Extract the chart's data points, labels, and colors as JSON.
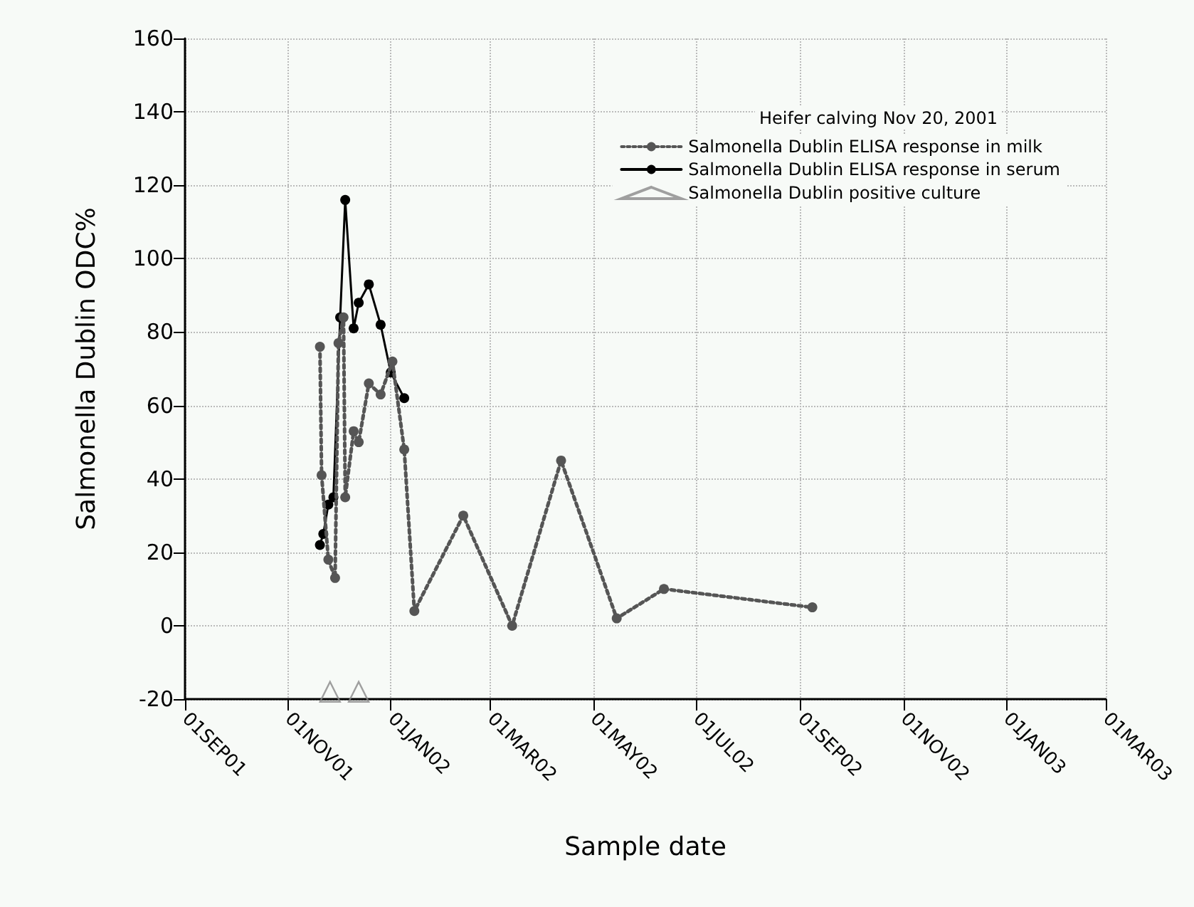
{
  "chart_data": {
    "type": "line",
    "xlabel": "Sample date",
    "ylabel": "Salmonella Dublin ODC%",
    "legend_title": "Heifer calving Nov 20, 2001",
    "xlim": [
      "2001-09-01",
      "2003-03-01"
    ],
    "xticks": [
      {
        "value": "2001-09-01",
        "label": "01SEP01"
      },
      {
        "value": "2001-11-01",
        "label": "01NOV01"
      },
      {
        "value": "2002-01-01",
        "label": "01JAN02"
      },
      {
        "value": "2002-03-01",
        "label": "01MAR02"
      },
      {
        "value": "2002-05-01",
        "label": "01MAY02"
      },
      {
        "value": "2002-07-01",
        "label": "01JUL02"
      },
      {
        "value": "2002-09-01",
        "label": "01SEP02"
      },
      {
        "value": "2002-11-01",
        "label": "01NOV02"
      },
      {
        "value": "2003-01-01",
        "label": "01JAN03"
      },
      {
        "value": "2003-03-01",
        "label": "01MAR03"
      }
    ],
    "ylim": [
      -20,
      160
    ],
    "yticks": [
      -20,
      0,
      20,
      40,
      60,
      80,
      100,
      120,
      140,
      160
    ],
    "grid": true,
    "legend": "top right",
    "series": [
      {
        "name": "Salmonella Dublin ELISA response in milk",
        "color": "#555555",
        "marker": "circle",
        "line_style": "dotted",
        "x": [
          "2001-11-20",
          "2001-11-21",
          "2001-11-25",
          "2001-11-29",
          "2001-12-01",
          "2001-12-04",
          "2001-12-05",
          "2001-12-10",
          "2001-12-13",
          "2001-12-19",
          "2001-12-26",
          "2002-01-02",
          "2002-01-09",
          "2002-01-15",
          "2002-02-13",
          "2002-03-14",
          "2002-04-12",
          "2002-05-15",
          "2002-06-12",
          "2002-09-08"
        ],
        "values": [
          76,
          41,
          18,
          13,
          77,
          84,
          35,
          53,
          50,
          66,
          63,
          72,
          48,
          4,
          30,
          0,
          45,
          2,
          10,
          5
        ]
      },
      {
        "name": "Salmonella Dublin ELISA response in serum",
        "color": "#000000",
        "marker": "circle",
        "line_style": "solid",
        "x": [
          "2001-11-20",
          "2001-11-22",
          "2001-11-25",
          "2001-11-28",
          "2001-12-02",
          "2001-12-05",
          "2001-12-10",
          "2001-12-13",
          "2001-12-19",
          "2001-12-26",
          "2002-01-01",
          "2002-01-09"
        ],
        "values": [
          22,
          25,
          33,
          35,
          84,
          116,
          81,
          88,
          93,
          82,
          69,
          62
        ]
      },
      {
        "name": "Salmonella Dublin positive culture",
        "type": "scatter",
        "color": "#888888",
        "marker": "triangle",
        "x": [
          "2001-11-26",
          "2001-12-13"
        ],
        "values": [
          -18,
          -18
        ]
      }
    ]
  }
}
